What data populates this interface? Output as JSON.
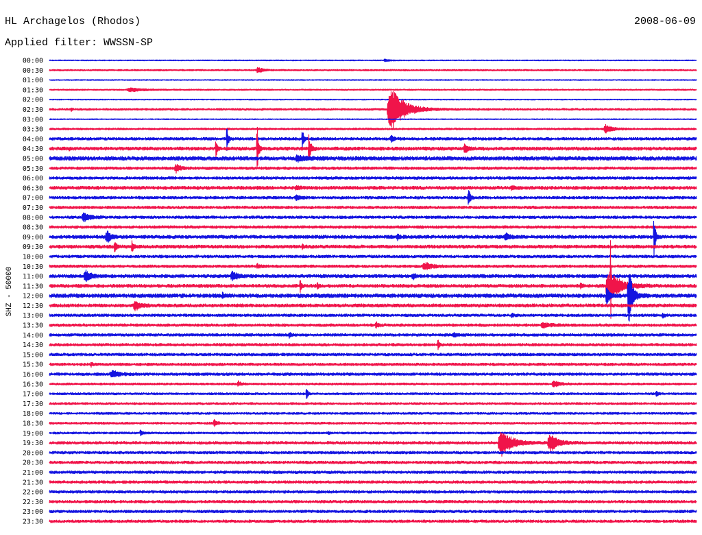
{
  "chart_data": {
    "type": "line",
    "title": "HL Archagelos (Rhodos)",
    "date": "2008-06-09",
    "filter": "Applied filter: WWSSN-SP",
    "ylabel": "SHZ - 50000",
    "trace_colors": [
      "#1414e0",
      "#f0144a"
    ],
    "rows": [
      {
        "label": "00:00",
        "noise": 2500
      },
      {
        "label": "00:30",
        "noise": 4000
      },
      {
        "label": "01:00",
        "noise": 2500
      },
      {
        "label": "01:30",
        "noise": 3500
      },
      {
        "label": "02:00",
        "noise": 2500
      },
      {
        "label": "02:30",
        "noise": 5000
      },
      {
        "label": "03:00",
        "noise": 2500
      },
      {
        "label": "03:30",
        "noise": 5000
      },
      {
        "label": "04:00",
        "noise": 7000
      },
      {
        "label": "04:30",
        "noise": 8500
      },
      {
        "label": "05:00",
        "noise": 10000
      },
      {
        "label": "05:30",
        "noise": 7000
      },
      {
        "label": "06:00",
        "noise": 7000
      },
      {
        "label": "06:30",
        "noise": 8500
      },
      {
        "label": "07:00",
        "noise": 7000
      },
      {
        "label": "07:30",
        "noise": 7000
      },
      {
        "label": "08:00",
        "noise": 7000
      },
      {
        "label": "08:30",
        "noise": 7000
      },
      {
        "label": "09:00",
        "noise": 8500
      },
      {
        "label": "09:30",
        "noise": 8500
      },
      {
        "label": "10:00",
        "noise": 7000
      },
      {
        "label": "10:30",
        "noise": 7000
      },
      {
        "label": "11:00",
        "noise": 8500
      },
      {
        "label": "11:30",
        "noise": 8500
      },
      {
        "label": "12:00",
        "noise": 10000
      },
      {
        "label": "12:30",
        "noise": 8500
      },
      {
        "label": "13:00",
        "noise": 7000
      },
      {
        "label": "13:30",
        "noise": 7000
      },
      {
        "label": "14:00",
        "noise": 7000
      },
      {
        "label": "14:30",
        "noise": 7000
      },
      {
        "label": "15:00",
        "noise": 7000
      },
      {
        "label": "15:30",
        "noise": 7000
      },
      {
        "label": "16:00",
        "noise": 7000
      },
      {
        "label": "16:30",
        "noise": 5500
      },
      {
        "label": "17:00",
        "noise": 5500
      },
      {
        "label": "17:30",
        "noise": 5500
      },
      {
        "label": "18:00",
        "noise": 5500
      },
      {
        "label": "18:30",
        "noise": 5500
      },
      {
        "label": "19:00",
        "noise": 5500
      },
      {
        "label": "19:30",
        "noise": 7000
      },
      {
        "label": "20:00",
        "noise": 7000
      },
      {
        "label": "20:30",
        "noise": 7000
      },
      {
        "label": "21:00",
        "noise": 7000
      },
      {
        "label": "21:30",
        "noise": 7000
      },
      {
        "label": "22:00",
        "noise": 7000
      },
      {
        "label": "22:30",
        "noise": 7000
      },
      {
        "label": "23:00",
        "noise": 7000
      },
      {
        "label": "23:30",
        "noise": 7000
      }
    ],
    "events": [
      {
        "time": "00:15:30",
        "amp": 7000,
        "dur": 36
      },
      {
        "time": "00:39:36",
        "amp": 14000,
        "dur": 36
      },
      {
        "time": "01:33:36",
        "amp": 10000,
        "dur": 90
      },
      {
        "time": "02:31:00",
        "amp": 10000,
        "dur": 6
      },
      {
        "time": "02:45:40",
        "amp": 115000,
        "dur": 100
      },
      {
        "time": "03:55:42",
        "amp": 21000,
        "dur": 48
      },
      {
        "time": "04:08:12",
        "amp": 70000,
        "dur": 12
      },
      {
        "time": "04:11:42",
        "amp": 55000,
        "dur": 12
      },
      {
        "time": "04:15:48",
        "amp": 14000,
        "dur": 24
      },
      {
        "time": "04:30:54",
        "amp": 7000,
        "dur": 10
      },
      {
        "time": "04:37:42",
        "amp": 60000,
        "dur": 10
      },
      {
        "time": "04:39:36",
        "amp": 180000,
        "dur": 10
      },
      {
        "time": "04:42:00",
        "amp": 80000,
        "dur": 14
      },
      {
        "time": "04:49:12",
        "amp": 28000,
        "dur": 24
      },
      {
        "time": "05:11:24",
        "amp": 14000,
        "dur": 60
      },
      {
        "time": "05:35:48",
        "amp": 21000,
        "dur": 36
      },
      {
        "time": "06:41:24",
        "amp": 10000,
        "dur": 30
      },
      {
        "time": "06:51:24",
        "amp": 10000,
        "dur": 30
      },
      {
        "time": "07:11:24",
        "amp": 12000,
        "dur": 30
      },
      {
        "time": "07:19:24",
        "amp": 50000,
        "dur": 14
      },
      {
        "time": "08:01:30",
        "amp": 21000,
        "dur": 48
      },
      {
        "time": "09:02:36",
        "amp": 28000,
        "dur": 36
      },
      {
        "time": "09:16:06",
        "amp": 14000,
        "dur": 20
      },
      {
        "time": "09:21:06",
        "amp": 17000,
        "dur": 36
      },
      {
        "time": "09:28:00",
        "amp": 160000,
        "dur": 10
      },
      {
        "time": "09:33:00",
        "amp": 32000,
        "dur": 14
      },
      {
        "time": "09:33:48",
        "amp": 35000,
        "dur": 10
      },
      {
        "time": "09:41:42",
        "amp": 10000,
        "dur": 14
      },
      {
        "time": "10:39:36",
        "amp": 10000,
        "dur": 20
      },
      {
        "time": "10:47:18",
        "amp": 17000,
        "dur": 60
      },
      {
        "time": "11:01:36",
        "amp": 32000,
        "dur": 36
      },
      {
        "time": "11:08:24",
        "amp": 25000,
        "dur": 36
      },
      {
        "time": "11:16:48",
        "amp": 14000,
        "dur": 24
      },
      {
        "time": "11:41:36",
        "amp": 35000,
        "dur": 10
      },
      {
        "time": "11:42:24",
        "amp": 14000,
        "dur": 10
      },
      {
        "time": "11:54:36",
        "amp": 14000,
        "dur": 14
      },
      {
        "time": "11:55:48",
        "amp": 70000,
        "dur": 90
      },
      {
        "time": "11:56:00",
        "amp": 400000,
        "dur": 3
      },
      {
        "time": "12:08:00",
        "amp": 14000,
        "dur": 10
      },
      {
        "time": "12:25:48",
        "amp": 50000,
        "dur": 20
      },
      {
        "time": "12:26:48",
        "amp": 150000,
        "dur": 30
      },
      {
        "time": "12:33:54",
        "amp": 28000,
        "dur": 36
      },
      {
        "time": "13:21:24",
        "amp": 10000,
        "dur": 20
      },
      {
        "time": "13:28:24",
        "amp": 10000,
        "dur": 20
      },
      {
        "time": "13:45:06",
        "amp": 17000,
        "dur": 20
      },
      {
        "time": "13:52:48",
        "amp": 14000,
        "dur": 48
      },
      {
        "time": "14:11:06",
        "amp": 17000,
        "dur": 16
      },
      {
        "time": "14:18:42",
        "amp": 10000,
        "dur": 24
      },
      {
        "time": "14:48:00",
        "amp": 40000,
        "dur": 8
      },
      {
        "time": "15:31:54",
        "amp": 10000,
        "dur": 14
      },
      {
        "time": "16:02:48",
        "amp": 17000,
        "dur": 60
      },
      {
        "time": "16:38:42",
        "amp": 14000,
        "dur": 20
      },
      {
        "time": "16:53:18",
        "amp": 14000,
        "dur": 48
      },
      {
        "time": "17:11:54",
        "amp": 35000,
        "dur": 10
      },
      {
        "time": "17:28:06",
        "amp": 14000,
        "dur": 16
      },
      {
        "time": "18:37:36",
        "amp": 21000,
        "dur": 20
      },
      {
        "time": "19:04:12",
        "amp": 21000,
        "dur": 12
      },
      {
        "time": "19:12:54",
        "amp": 10000,
        "dur": 10
      },
      {
        "time": "19:50:48",
        "amp": 70000,
        "dur": 80
      },
      {
        "time": "19:53:06",
        "amp": 45000,
        "dur": 60
      }
    ]
  }
}
